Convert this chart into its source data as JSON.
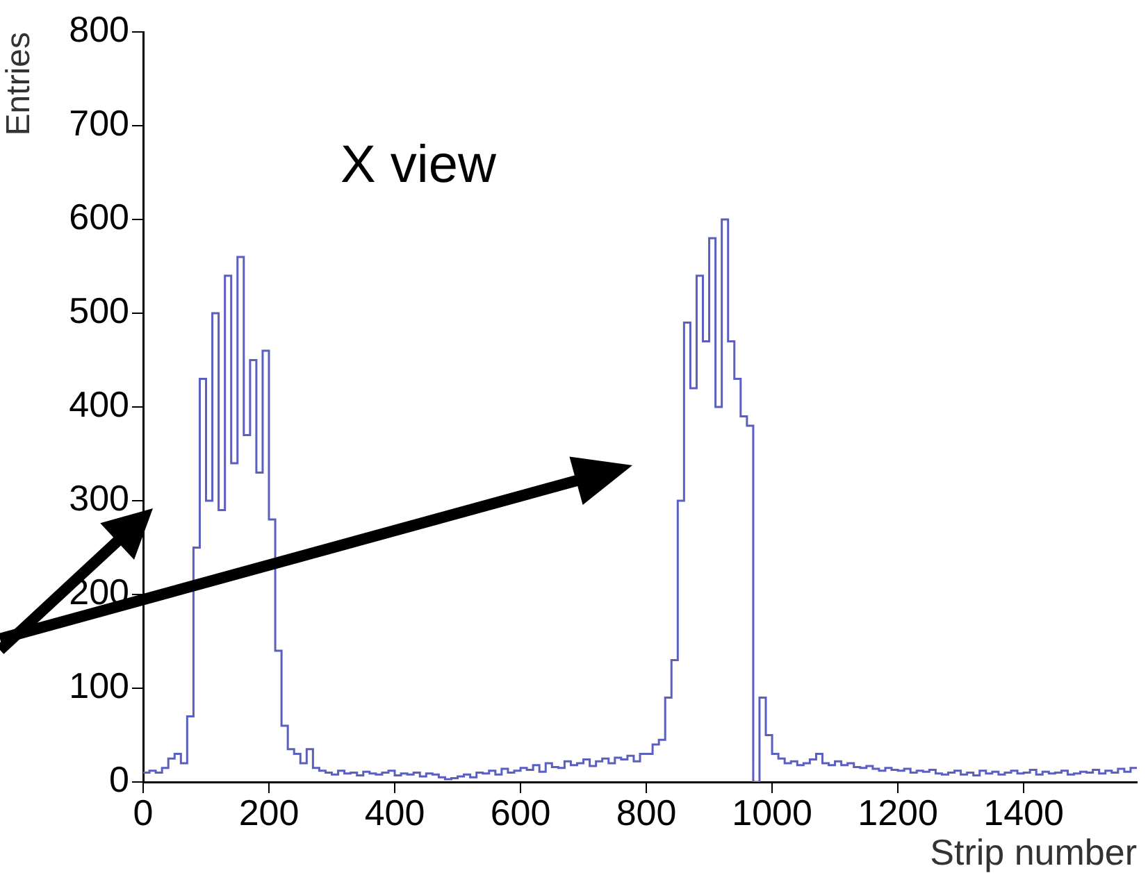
{
  "chart_data": {
    "type": "histogram",
    "xlabel": "Strip number",
    "ylabel": "Entries",
    "annotations": [
      "X view"
    ],
    "bins": [
      0,
      10,
      20,
      30,
      40,
      50,
      60,
      70,
      80,
      90,
      100,
      110,
      120,
      130,
      140,
      150,
      160,
      170,
      180,
      190,
      200,
      210,
      220,
      230,
      240,
      250,
      260,
      270,
      280,
      290,
      300,
      310,
      320,
      330,
      340,
      350,
      360,
      370,
      380,
      390,
      400,
      410,
      420,
      430,
      440,
      450,
      460,
      470,
      480,
      490,
      500,
      510,
      520,
      530,
      540,
      550,
      560,
      570,
      580,
      590,
      600,
      610,
      620,
      630,
      640,
      650,
      660,
      670,
      680,
      690,
      700,
      710,
      720,
      730,
      740,
      750,
      760,
      770,
      780,
      790,
      800,
      810,
      820,
      830,
      840,
      850,
      860,
      870,
      880,
      890,
      900,
      910,
      920,
      930,
      940,
      950,
      960,
      970,
      980,
      990,
      1000,
      1010,
      1020,
      1030,
      1040,
      1050,
      1060,
      1070,
      1080,
      1090,
      1100,
      1110,
      1120,
      1130,
      1140,
      1150,
      1160,
      1170,
      1180,
      1190,
      1200,
      1210,
      1220,
      1230,
      1240,
      1250,
      1260,
      1270,
      1280,
      1290,
      1300,
      1310,
      1320,
      1330,
      1340,
      1350,
      1360,
      1370,
      1380,
      1390,
      1400,
      1410,
      1420,
      1430,
      1440,
      1450,
      1460,
      1470,
      1480,
      1490,
      1500,
      1510,
      1520,
      1530,
      1540,
      1550,
      1560,
      1570,
      1580
    ],
    "values": [
      10,
      12,
      10,
      15,
      25,
      30,
      20,
      70,
      250,
      430,
      300,
      500,
      290,
      540,
      340,
      560,
      370,
      450,
      330,
      460,
      280,
      140,
      60,
      35,
      30,
      20,
      35,
      15,
      12,
      10,
      8,
      12,
      9,
      10,
      7,
      11,
      9,
      8,
      10,
      12,
      7,
      9,
      8,
      10,
      6,
      9,
      8,
      5,
      3,
      4,
      6,
      8,
      5,
      10,
      9,
      12,
      8,
      14,
      10,
      12,
      15,
      13,
      18,
      11,
      20,
      16,
      15,
      22,
      18,
      20,
      24,
      17,
      22,
      25,
      20,
      26,
      24,
      28,
      22,
      30,
      30,
      40,
      45,
      90,
      130,
      300,
      490,
      420,
      540,
      470,
      580,
      400,
      600,
      470,
      430,
      390,
      380,
      0,
      90,
      50,
      30,
      25,
      20,
      22,
      18,
      20,
      24,
      30,
      20,
      18,
      22,
      18,
      20,
      16,
      15,
      17,
      14,
      12,
      15,
      13,
      12,
      14,
      10,
      12,
      11,
      13,
      9,
      8,
      10,
      12,
      8,
      10,
      7,
      12,
      9,
      11,
      8,
      10,
      12,
      9,
      10,
      13,
      8,
      11,
      9,
      10,
      12,
      8,
      9,
      11,
      10,
      13,
      9,
      12,
      10,
      14,
      11,
      15
    ],
    "color": "#5a5fc0",
    "xlim": [
      0,
      1580
    ],
    "xticks": [
      0,
      200,
      400,
      600,
      800,
      1000,
      1200,
      1400
    ],
    "ylim": [
      0,
      800
    ],
    "yticks": [
      0,
      100,
      200,
      300,
      400,
      500,
      600,
      700,
      800
    ],
    "grid": false,
    "legend": false
  }
}
